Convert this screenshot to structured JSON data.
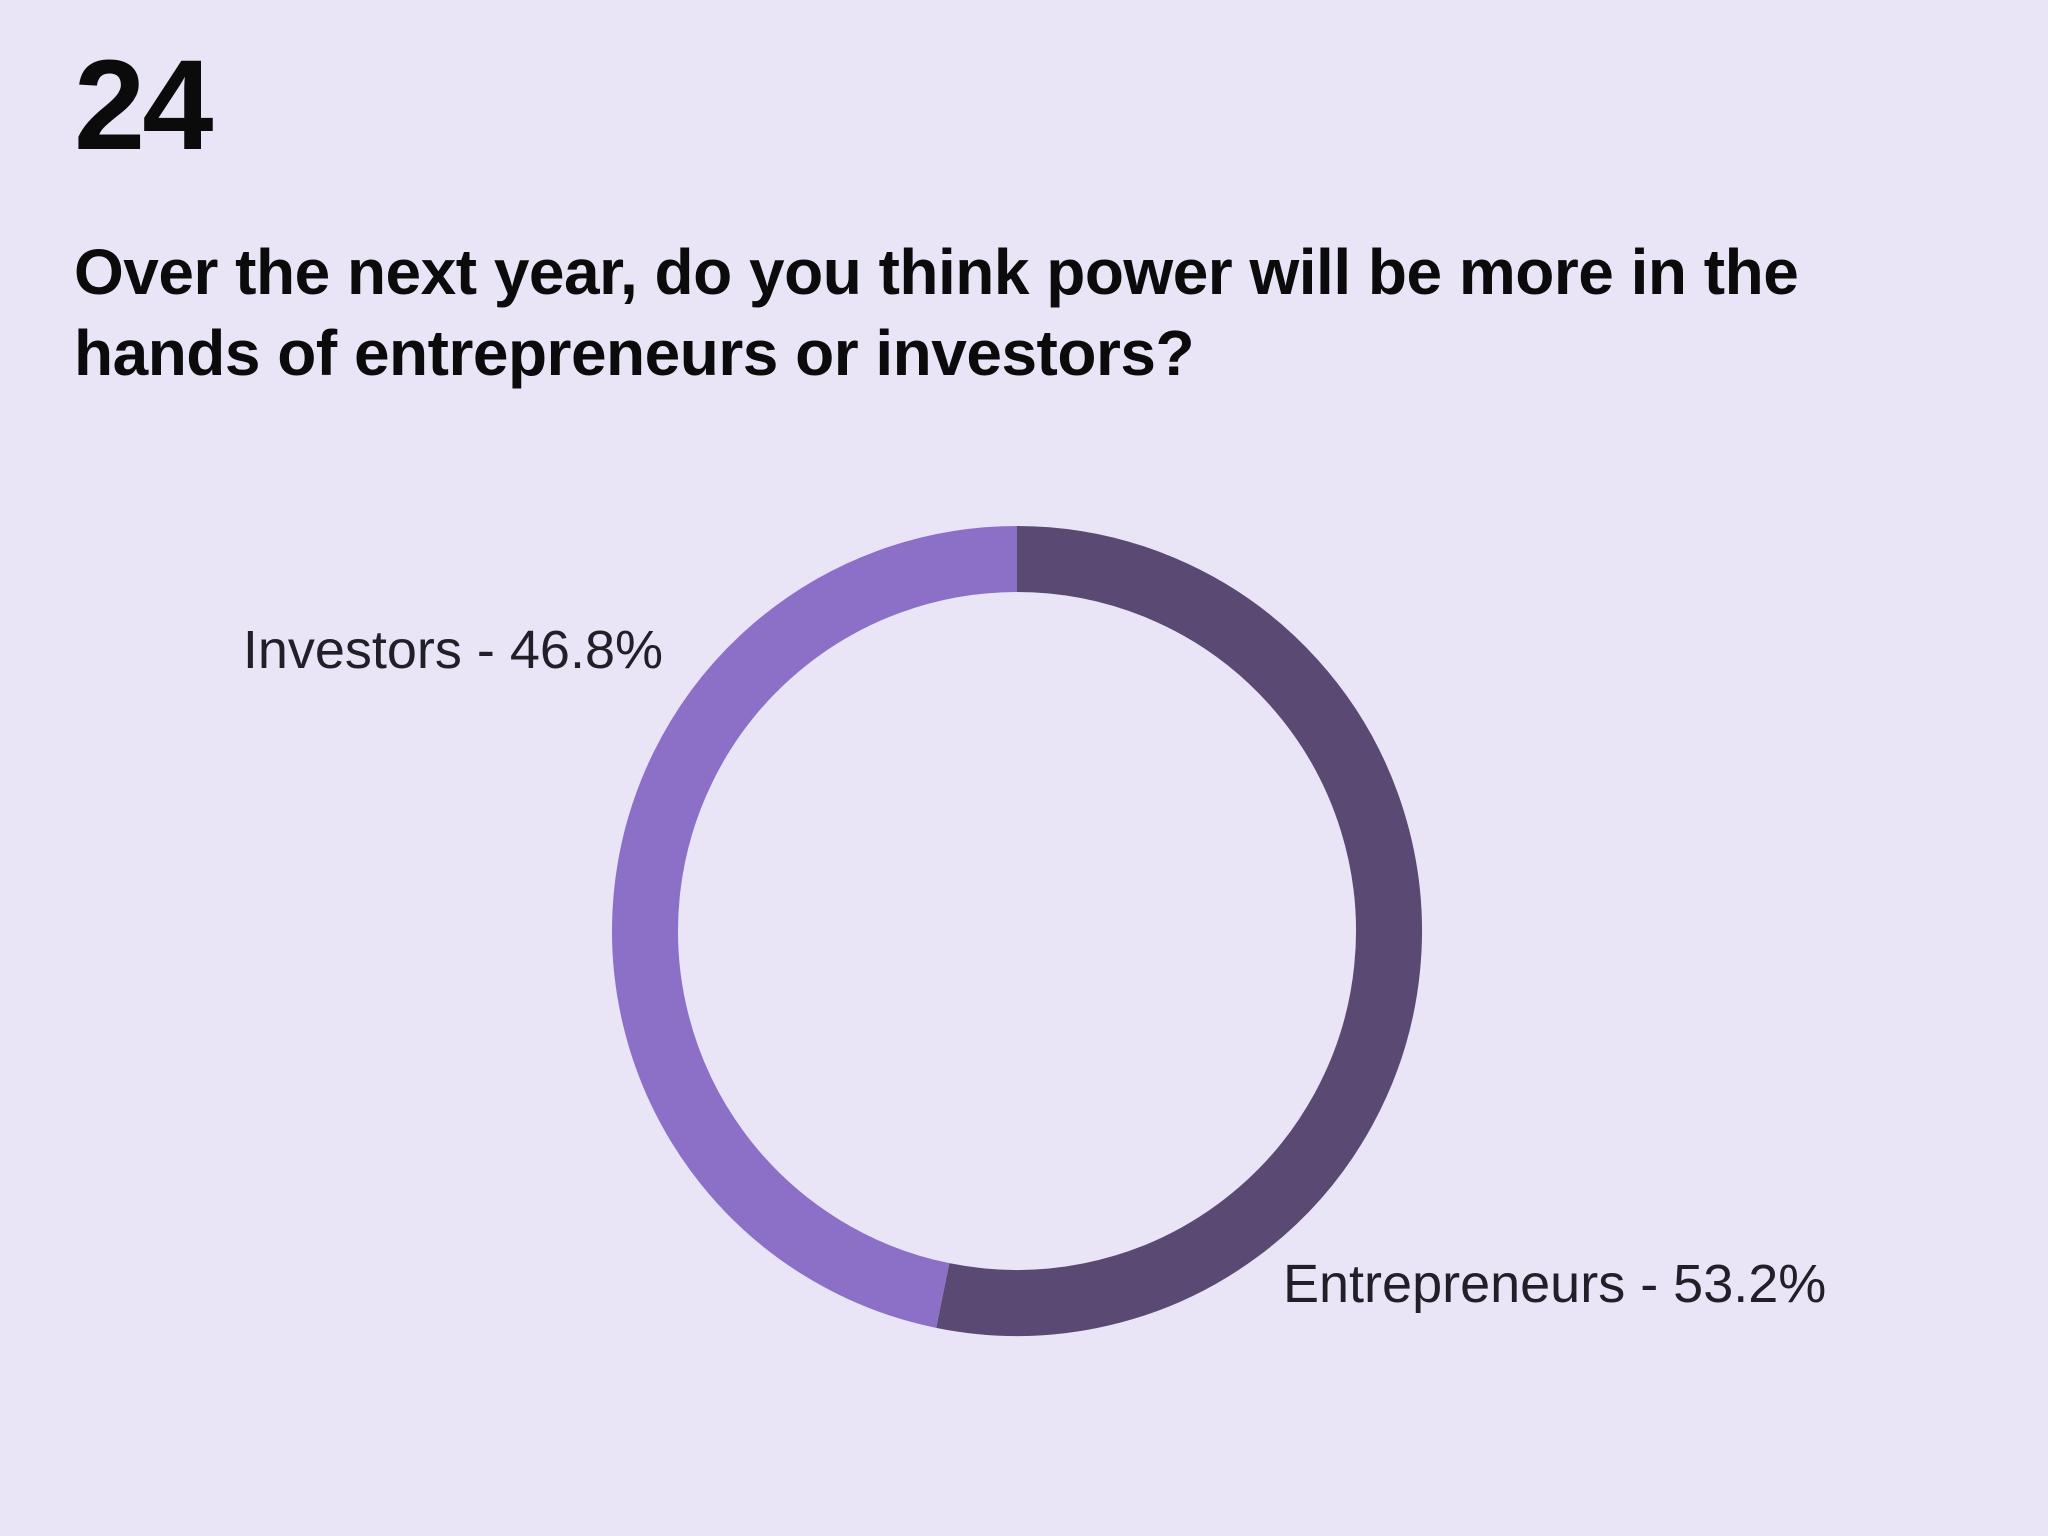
{
  "page": {
    "number": "24",
    "question": "Over the next year, do you think power will be more in the hands of entrepreneurs or investors?"
  },
  "chart_data": {
    "type": "pie",
    "subtype": "donut",
    "title": "",
    "start_angle_deg": -90,
    "direction": "clockwise",
    "total": 100,
    "categories": [
      "Entrepreneurs",
      "Investors"
    ],
    "values": [
      53.2,
      46.8
    ],
    "segments": [
      {
        "label": "Entrepreneurs",
        "value": 53.2,
        "display": "Entrepreneurs - 53.2%",
        "color": "#5a4a73"
      },
      {
        "label": "Investors",
        "value": 46.8,
        "display": "Investors - 46.8%",
        "color": "#8c70c8"
      }
    ],
    "legend_position": "labels-beside-slices",
    "donut_hole_ratio": 0.84
  },
  "colors": {
    "background": "#e9e4f6",
    "heading_text": "#0b0b0c",
    "label_text": "#211f28",
    "entrepreneurs_segment": "#5a4a73",
    "investors_segment": "#8c70c8"
  }
}
